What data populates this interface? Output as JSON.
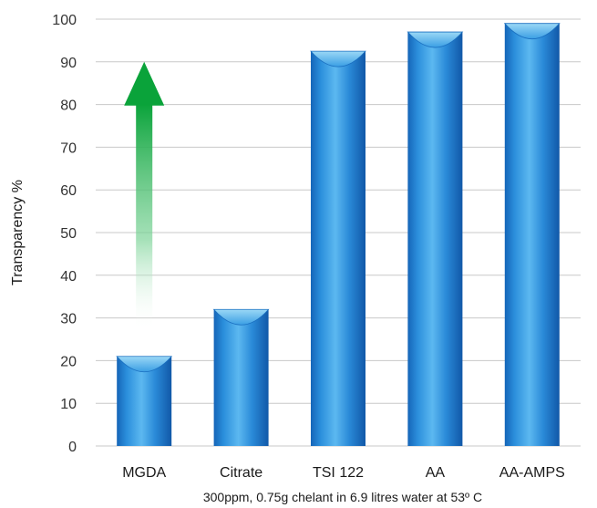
{
  "chart_data": {
    "type": "bar",
    "categories": [
      "MGDA",
      "Citrate",
      "TSI 122",
      "AA",
      "AA-AMPS"
    ],
    "values": [
      21,
      32,
      92.5,
      97,
      99
    ],
    "ylabel": "Transparency %",
    "xlabel": "300ppm, 0.75g chelant in 6.9 litres water at 53º C",
    "ylim": [
      0,
      100
    ],
    "yticks": [
      0,
      10,
      20,
      30,
      40,
      50,
      60,
      70,
      80,
      90,
      100
    ],
    "grid": true,
    "bar_color": "#1e88d8",
    "bar_cap_color": "#7cc8f0",
    "annotation_arrow": {
      "from_value": 27,
      "to_value": 90,
      "category": "MGDA",
      "color": "#0aa33a"
    }
  }
}
